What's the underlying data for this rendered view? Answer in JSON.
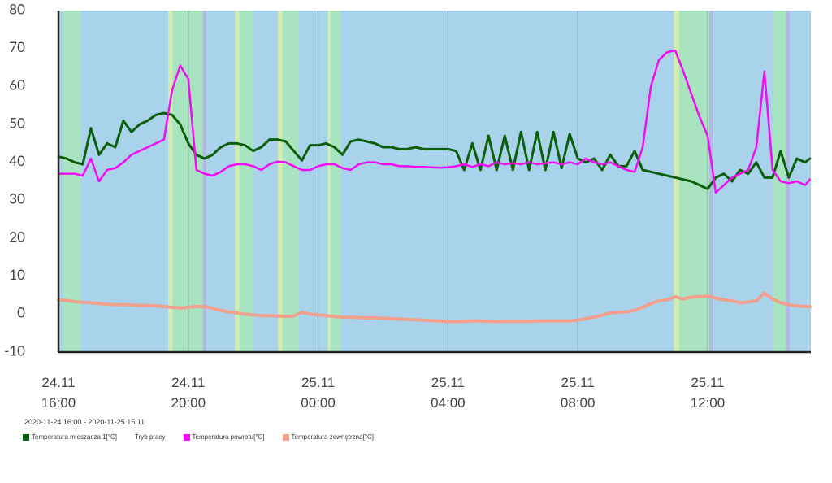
{
  "chart_data": {
    "type": "line",
    "subtitle": "2020-11-24 16:00 - 2020-11-25 15:11",
    "xlim": [
      16,
      39.18
    ],
    "xticks": [
      {
        "value": 16,
        "label": "24.11\n16:00"
      },
      {
        "value": 20,
        "label": "24.11\n20:00"
      },
      {
        "value": 24,
        "label": "25.11\n00:00"
      },
      {
        "value": 28,
        "label": "25.11\n04:00"
      },
      {
        "value": 32,
        "label": "25.11\n08:00"
      },
      {
        "value": 36,
        "label": "25.11\n12:00"
      }
    ],
    "xgrid": true,
    "ylim": [
      -10,
      80
    ],
    "yticks": [
      -10,
      0,
      10,
      20,
      30,
      40,
      50,
      60,
      70,
      80
    ],
    "grid": false,
    "legend": "bottom-left",
    "x": [
      16,
      16.25,
      16.5,
      16.75,
      17,
      17.25,
      17.5,
      17.75,
      18,
      18.25,
      18.5,
      18.75,
      19,
      19.25,
      19.5,
      19.75,
      20,
      20.25,
      20.5,
      20.75,
      21,
      21.25,
      21.5,
      21.75,
      22,
      22.25,
      22.5,
      22.75,
      23,
      23.25,
      23.5,
      23.75,
      24,
      24.25,
      24.5,
      24.75,
      25,
      25.25,
      25.5,
      25.75,
      26,
      26.25,
      26.5,
      26.75,
      27,
      27.25,
      27.5,
      27.75,
      28,
      28.25,
      28.5,
      28.75,
      29,
      29.25,
      29.5,
      29.75,
      30,
      30.25,
      30.5,
      30.75,
      31,
      31.25,
      31.5,
      31.75,
      32,
      32.25,
      32.5,
      32.75,
      33,
      33.25,
      33.5,
      33.75,
      34,
      34.25,
      34.5,
      34.75,
      35,
      35.25,
      35.5,
      35.75,
      36,
      36.25,
      36.5,
      36.75,
      37,
      37.25,
      37.5,
      37.75,
      38,
      38.25,
      38.5,
      38.75,
      39,
      39.15
    ],
    "series": [
      {
        "name": "Temperatura mieszacza 1[°C]",
        "color": "#0b5e0b",
        "width": 3,
        "values": [
          41.5,
          41,
          40,
          39.5,
          49,
          42,
          45,
          44,
          51,
          48,
          50,
          51,
          52.5,
          53,
          52.5,
          50,
          45,
          42,
          41,
          42,
          44,
          45,
          45,
          44.5,
          43,
          44,
          46,
          46,
          45.5,
          43,
          40.5,
          44.5,
          44.5,
          45,
          44,
          42,
          45.5,
          46,
          45.5,
          45,
          44,
          44,
          43.5,
          43.5,
          44,
          43.5,
          43.5,
          43.5,
          43.5,
          43,
          38,
          45,
          38,
          47,
          38,
          47,
          38,
          48,
          38,
          48,
          38,
          48,
          38.5,
          47.5,
          41,
          40,
          41,
          38,
          42,
          39,
          39,
          43,
          38,
          37.5,
          37,
          36.5,
          36,
          35.5,
          35,
          34,
          33,
          36,
          37,
          35,
          38,
          37,
          40,
          36,
          36,
          43,
          36,
          41,
          40,
          41
        ]
      },
      {
        "name": "Tryb pracy",
        "segments": [
          {
            "x0": 16,
            "x1": 16.13,
            "color": "#a9d3ea"
          },
          {
            "x0": 16.13,
            "x1": 16.68,
            "color": "#a8e4bf"
          },
          {
            "x0": 16.68,
            "x1": 19.38,
            "color": "#a9d3ea"
          },
          {
            "x0": 19.38,
            "x1": 19.51,
            "color": "#d6ecaa"
          },
          {
            "x0": 19.51,
            "x1": 20.44,
            "color": "#a8e4bf"
          },
          {
            "x0": 20.44,
            "x1": 20.56,
            "color": "#b3b8e6"
          },
          {
            "x0": 20.56,
            "x1": 21.44,
            "color": "#a9d3ea"
          },
          {
            "x0": 21.44,
            "x1": 21.56,
            "color": "#d6ecaa"
          },
          {
            "x0": 21.56,
            "x1": 21.99,
            "color": "#a8e4bf"
          },
          {
            "x0": 21.99,
            "x1": 22.77,
            "color": "#a9d3ea"
          },
          {
            "x0": 22.77,
            "x1": 22.89,
            "color": "#d6ecaa"
          },
          {
            "x0": 22.89,
            "x1": 23.39,
            "color": "#a8e4bf"
          },
          {
            "x0": 23.39,
            "x1": 24.3,
            "color": "#a9d3ea"
          },
          {
            "x0": 24.3,
            "x1": 24.37,
            "color": "#d6ecaa"
          },
          {
            "x0": 24.37,
            "x1": 24.7,
            "color": "#a8e4bf"
          },
          {
            "x0": 24.7,
            "x1": 34.97,
            "color": "#a9d3ea"
          },
          {
            "x0": 34.97,
            "x1": 35.12,
            "color": "#d6ecaa"
          },
          {
            "x0": 35.12,
            "x1": 36.05,
            "color": "#a8e4bf"
          },
          {
            "x0": 36.05,
            "x1": 36.18,
            "color": "#b3b8e6"
          },
          {
            "x0": 36.18,
            "x1": 38.03,
            "color": "#a9d3ea"
          },
          {
            "x0": 38.03,
            "x1": 38.41,
            "color": "#a8e4bf"
          },
          {
            "x0": 38.41,
            "x1": 38.53,
            "color": "#b3b8e6"
          },
          {
            "x0": 38.53,
            "x1": 39.18,
            "color": "#a9d3ea"
          }
        ]
      },
      {
        "name": "Temperatura powrotu[°C]",
        "color": "#f20cf2",
        "width": 2.5,
        "values": [
          37,
          37,
          37,
          36.5,
          41,
          35,
          38,
          38.5,
          40,
          42,
          43,
          44,
          45,
          46,
          59,
          65.5,
          62,
          38,
          37,
          36.5,
          37.5,
          39,
          39.5,
          39.5,
          39,
          38,
          39.5,
          40.2,
          40,
          39,
          38,
          38,
          39,
          39.5,
          39.5,
          38.5,
          38,
          39.5,
          40,
          40,
          39.5,
          39.5,
          39,
          39,
          38.8,
          38.8,
          38.7,
          38.6,
          38.7,
          39,
          39.5,
          38.8,
          39.5,
          39,
          40,
          39.5,
          39.8,
          39.5,
          40,
          39.5,
          39.8,
          40,
          39.5,
          40,
          39.5,
          41,
          40,
          39.5,
          40,
          39,
          38,
          37.5,
          44,
          60,
          67,
          69,
          69.5,
          64,
          58,
          52,
          47,
          32,
          34,
          36,
          37,
          38,
          44,
          64,
          38,
          35,
          34.5,
          35,
          34,
          35.5
        ]
      },
      {
        "name": "Temperatura zewnętrzna[°C]",
        "color": "#f0a08c",
        "width": 4,
        "values": [
          3.8,
          3.6,
          3.3,
          3.1,
          3,
          2.8,
          2.6,
          2.5,
          2.5,
          2.4,
          2.3,
          2.3,
          2.2,
          2,
          1.8,
          1.6,
          1.8,
          2,
          2,
          1.5,
          1,
          0.6,
          0.3,
          0,
          -0.2,
          -0.4,
          -0.4,
          -0.5,
          -0.6,
          -0.5,
          0.5,
          0,
          -0.2,
          -0.4,
          -0.6,
          -0.8,
          -0.8,
          -0.9,
          -1,
          -1,
          -1.1,
          -1.2,
          -1.3,
          -1.4,
          -1.5,
          -1.6,
          -1.7,
          -1.8,
          -2,
          -2,
          -1.9,
          -1.8,
          -1.8,
          -1.9,
          -2,
          -1.9,
          -1.9,
          -1.9,
          -1.9,
          -1.8,
          -1.8,
          -1.8,
          -1.8,
          -1.8,
          -1.6,
          -1.2,
          -0.8,
          -0.3,
          0.3,
          0.5,
          0.6,
          1,
          1.8,
          2.8,
          3.5,
          3.8,
          4.6,
          4,
          4.5,
          4.6,
          4.8,
          4.2,
          3.8,
          3.5,
          3,
          3.2,
          3.5,
          5.5,
          4,
          3,
          2.5,
          2.2,
          2,
          2
        ]
      }
    ]
  }
}
